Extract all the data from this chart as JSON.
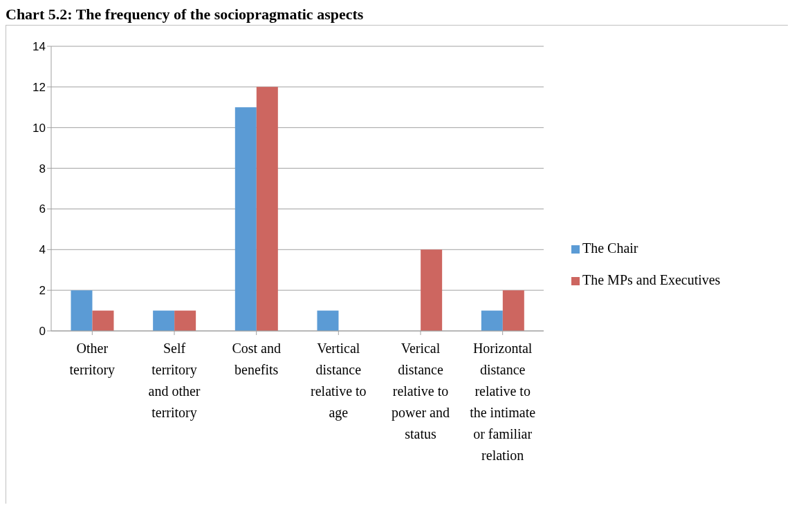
{
  "chart_data": {
    "type": "bar",
    "title": "Chart 5.2: The frequency of the sociopragmatic aspects",
    "categories": [
      "Other territory",
      "Self territory and other territory",
      "Cost and benefits",
      "Vertical distance relative to age",
      "Verical distance relative to power and status",
      "Horizontal distance relative to the intimate or familiar relation"
    ],
    "series": [
      {
        "name": "The Chair",
        "color": "#5b9bd5",
        "values": [
          2,
          1,
          11,
          1,
          0,
          1
        ]
      },
      {
        "name": "The MPs and Executives",
        "color": "#cd6660",
        "values": [
          1,
          1,
          12,
          0,
          4,
          2
        ]
      }
    ],
    "ylim": [
      0,
      14
    ],
    "yticks": [
      0,
      2,
      4,
      6,
      8,
      10,
      12,
      14
    ],
    "grid": "y",
    "legend": "right"
  }
}
